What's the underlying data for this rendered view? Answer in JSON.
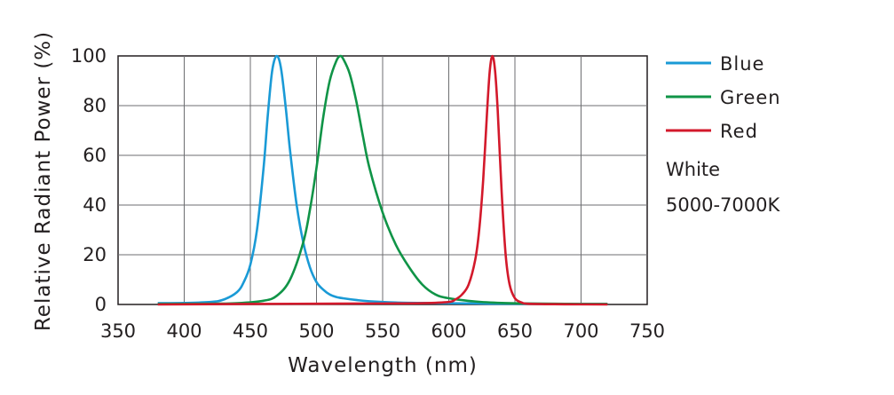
{
  "chart_data": {
    "type": "line",
    "title": "",
    "xlabel": "Wavelength (nm)",
    "ylabel": "Relative Radiant Power (%)",
    "xlim": [
      350,
      750
    ],
    "ylim": [
      0,
      100
    ],
    "x_ticks": [
      350,
      400,
      450,
      500,
      550,
      600,
      650,
      700,
      750
    ],
    "y_ticks": [
      0,
      20,
      40,
      60,
      80,
      100
    ],
    "grid": true,
    "legend_position": "right",
    "notes": [
      "White",
      "5000-7000K"
    ],
    "series": [
      {
        "name": "Blue",
        "color": "#1a9ad6",
        "x": [
          380,
          400,
          420,
          430,
          440,
          445,
          450,
          455,
          460,
          463,
          466,
          468,
          470,
          472,
          474,
          477,
          480,
          485,
          490,
          495,
          500,
          505,
          510,
          515,
          520,
          530,
          540,
          560,
          580,
          600,
          620,
          640,
          660,
          680,
          700,
          720
        ],
        "y": [
          0.5,
          0.6,
          1,
          2,
          5,
          9,
          16,
          30,
          55,
          75,
          92,
          98,
          100,
          98,
          92,
          78,
          62,
          40,
          25,
          15,
          9,
          6,
          4,
          3,
          2.5,
          1.8,
          1.3,
          0.8,
          0.6,
          0.5,
          0.4,
          0.3,
          0.3,
          0.2,
          0.2,
          0.2
        ]
      },
      {
        "name": "Green",
        "color": "#109447",
        "x": [
          380,
          420,
          440,
          460,
          470,
          480,
          490,
          495,
          500,
          505,
          510,
          515,
          518,
          520,
          525,
          530,
          535,
          540,
          550,
          560,
          570,
          580,
          590,
          600,
          620,
          640,
          660,
          680,
          700,
          720
        ],
        "y": [
          0.2,
          0.3,
          0.5,
          1.5,
          3.5,
          10,
          25,
          38,
          55,
          75,
          90,
          98,
          100,
          99,
          93,
          82,
          68,
          55,
          37,
          24,
          15,
          8,
          4,
          2.5,
          1.2,
          0.6,
          0.4,
          0.3,
          0.2,
          0.2
        ]
      },
      {
        "name": "Red",
        "color": "#d3192b",
        "x": [
          380,
          450,
          500,
          550,
          580,
          600,
          605,
          610,
          615,
          620,
          623,
          626,
          629,
          631,
          633,
          635,
          637,
          640,
          643,
          646,
          650,
          655,
          660,
          680,
          720
        ],
        "y": [
          0,
          0.2,
          0.3,
          0.4,
          0.5,
          1,
          2,
          4,
          8,
          18,
          30,
          50,
          78,
          94,
          100,
          94,
          78,
          45,
          20,
          8,
          2.5,
          0.8,
          0.3,
          0.1,
          0
        ]
      }
    ]
  }
}
